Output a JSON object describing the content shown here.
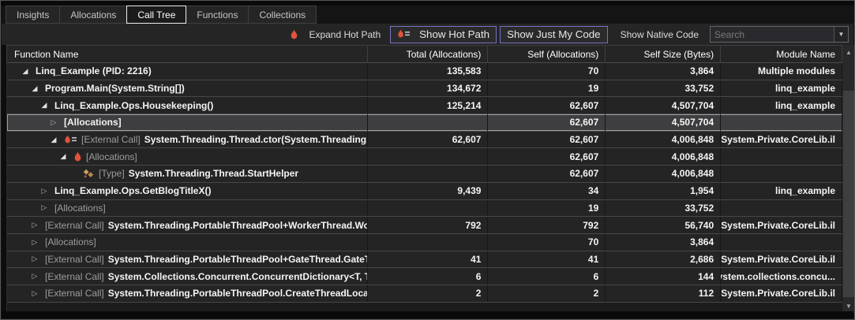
{
  "tabs": {
    "items": [
      {
        "label": "Insights",
        "active": false
      },
      {
        "label": "Allocations",
        "active": false
      },
      {
        "label": "Call Tree",
        "active": true
      },
      {
        "label": "Functions",
        "active": false
      },
      {
        "label": "Collections",
        "active": false
      }
    ]
  },
  "toolbar": {
    "expand_hot_path_label": "Expand Hot Path",
    "show_hot_path_label": "Show Hot Path",
    "show_just_my_code_label": "Show Just My Code",
    "show_native_code_label": "Show Native Code",
    "search": {
      "placeholder": "Search",
      "value": ""
    }
  },
  "icons": {
    "expander_expanded": "◢",
    "expander_collapsed": "▷",
    "dropdown_arrow": "▼",
    "scroll_up": "▲",
    "scroll_down": "▼"
  },
  "colors": {
    "accent_button_border": "#7672C4",
    "flame_red": "#E1523E",
    "type_icon_tan": "#C9A15F",
    "selection_bg": "#3E3E40",
    "selection_border": "#9E9E9E",
    "row_bg": "#242425",
    "toolbar_bg": "#252526"
  },
  "table": {
    "columns": [
      {
        "label": "Function Name",
        "align": "left"
      },
      {
        "label": "Total (Allocations)",
        "align": "right"
      },
      {
        "label": "Self (Allocations)",
        "align": "right"
      },
      {
        "label": "Self Size (Bytes)",
        "align": "right"
      },
      {
        "label": "Module Name",
        "align": "right"
      }
    ],
    "rows": [
      {
        "level": 0,
        "expander": "expanded",
        "icon": null,
        "prefix": "",
        "name": "Linq_Example (PID: 2216)",
        "total": "135,583",
        "self": "70",
        "self_size": "3,864",
        "module": "Multiple modules",
        "selected": false
      },
      {
        "level": 1,
        "expander": "expanded",
        "icon": null,
        "prefix": "",
        "name": "Program.Main(System.String[])",
        "total": "134,672",
        "self": "19",
        "self_size": "33,752",
        "module": "linq_example",
        "selected": false
      },
      {
        "level": 2,
        "expander": "expanded",
        "icon": null,
        "prefix": "",
        "name": "Linq_Example.Ops.Housekeeping()",
        "total": "125,214",
        "self": "62,607",
        "self_size": "4,507,704",
        "module": "linq_example",
        "selected": false
      },
      {
        "level": 3,
        "expander": "collapsed",
        "icon": null,
        "prefix": "[Allocations]",
        "name": "",
        "total": "",
        "self": "62,607",
        "self_size": "4,507,704",
        "module": "",
        "selected": true
      },
      {
        "level": 3,
        "expander": "expanded",
        "icon": "hot-path-flame",
        "prefix": "[External Call]",
        "name": "System.Threading.Thread.ctor(System.Threading.Thre...",
        "total": "62,607",
        "self": "62,607",
        "self_size": "4,006,848",
        "module": "System.Private.CoreLib.il",
        "selected": false
      },
      {
        "level": 4,
        "expander": "expanded",
        "icon": "flame",
        "prefix": "[Allocations]",
        "name": "",
        "total": "",
        "self": "62,607",
        "self_size": "4,006,848",
        "module": "",
        "selected": false
      },
      {
        "level": 5,
        "expander": "none",
        "icon": "type",
        "prefix": "[Type]",
        "name": "System.Threading.Thread.StartHelper",
        "total": "",
        "self": "62,607",
        "self_size": "4,006,848",
        "module": "",
        "selected": false
      },
      {
        "level": 2,
        "expander": "collapsed",
        "icon": null,
        "prefix": "",
        "name": "Linq_Example.Ops.GetBlogTitleX()",
        "total": "9,439",
        "self": "34",
        "self_size": "1,954",
        "module": "linq_example",
        "selected": false
      },
      {
        "level": 2,
        "expander": "collapsed",
        "icon": null,
        "prefix": "[Allocations]",
        "name": "",
        "total": "",
        "self": "19",
        "self_size": "33,752",
        "module": "",
        "selected": false
      },
      {
        "level": 1,
        "expander": "collapsed",
        "icon": null,
        "prefix": "[External Call]",
        "name": "System.Threading.PortableThreadPool+WorkerThread.Worker...",
        "total": "792",
        "self": "792",
        "self_size": "56,740",
        "module": "System.Private.CoreLib.il",
        "selected": false
      },
      {
        "level": 1,
        "expander": "collapsed",
        "icon": null,
        "prefix": "[Allocations]",
        "name": "",
        "total": "",
        "self": "70",
        "self_size": "3,864",
        "module": "",
        "selected": false
      },
      {
        "level": 1,
        "expander": "collapsed",
        "icon": null,
        "prefix": "[External Call]",
        "name": "System.Threading.PortableThreadPool+GateThread.GateThre...",
        "total": "41",
        "self": "41",
        "self_size": "2,686",
        "module": "System.Private.CoreLib.il",
        "selected": false
      },
      {
        "level": 1,
        "expander": "collapsed",
        "icon": null,
        "prefix": "[External Call]",
        "name": "System.Collections.Concurrent.ConcurrentDictionary<T, T>.G...",
        "total": "6",
        "self": "6",
        "self_size": "144",
        "module": "system.collections.concu...",
        "selected": false
      },
      {
        "level": 1,
        "expander": "collapsed",
        "icon": null,
        "prefix": "[External Call]",
        "name": "System.Threading.PortableThreadPool.CreateThreadLocalCo...",
        "total": "2",
        "self": "2",
        "self_size": "112",
        "module": "System.Private.CoreLib.il",
        "selected": false
      }
    ]
  }
}
